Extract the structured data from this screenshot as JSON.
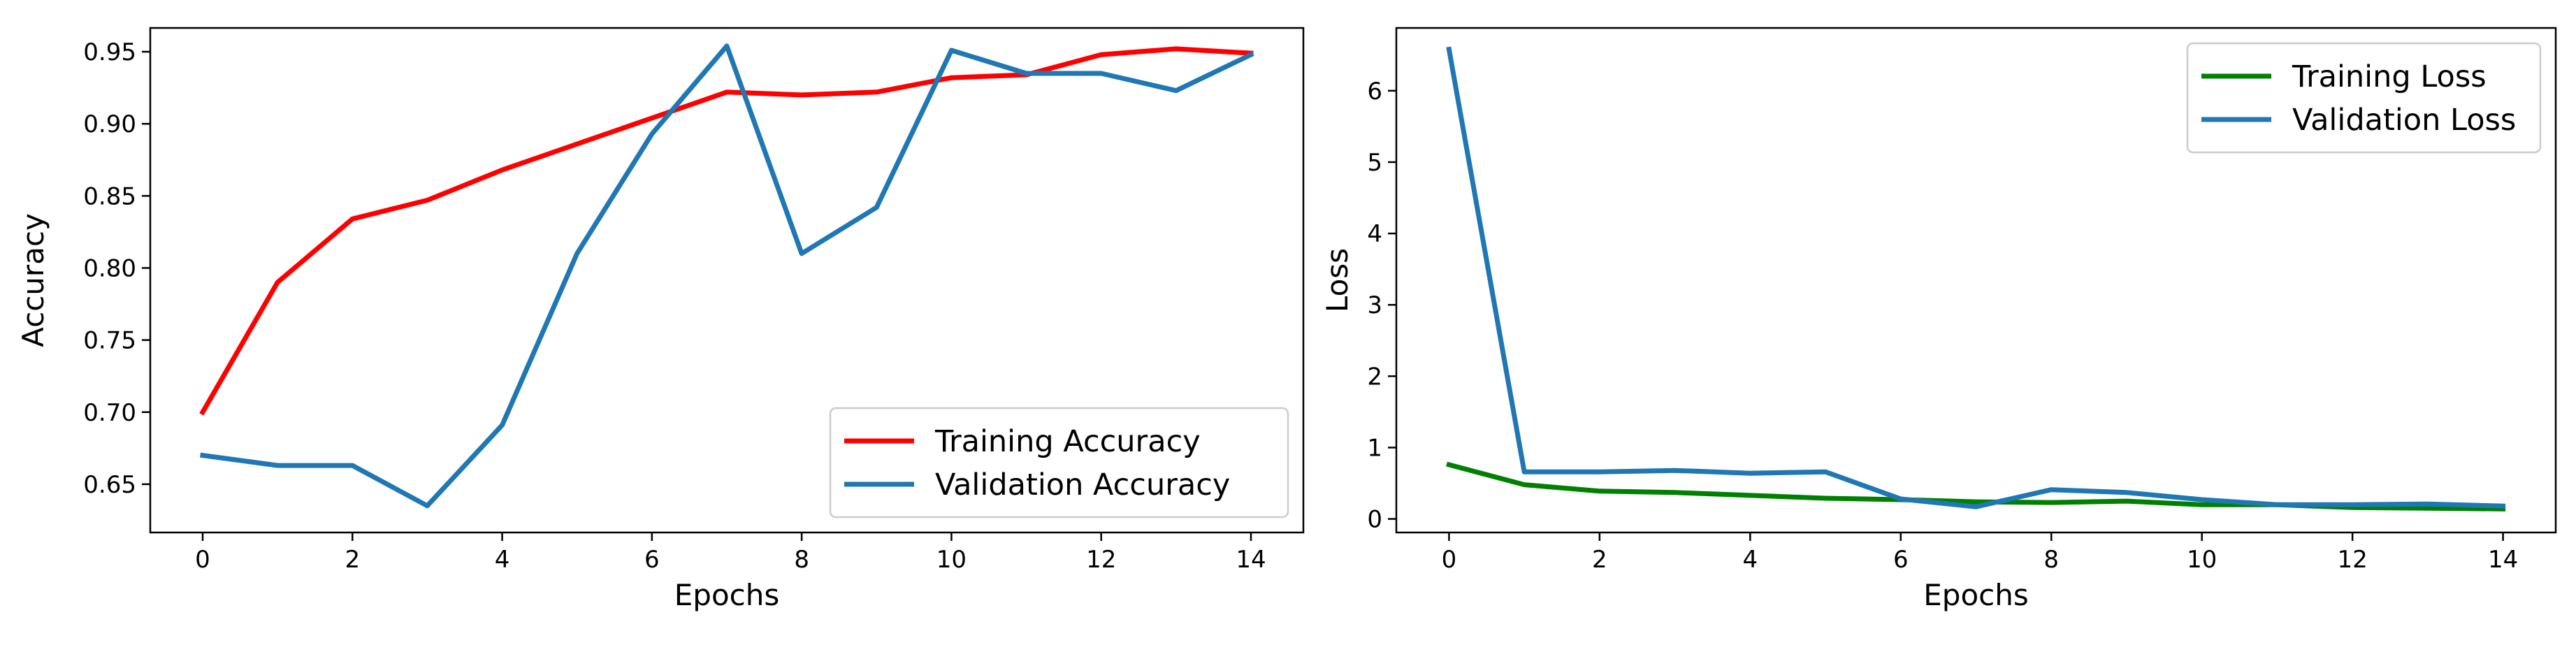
{
  "chart_data": [
    {
      "type": "line",
      "title": "",
      "xlabel": "Epochs",
      "ylabel": "Accuracy",
      "xlim": [
        -0.7,
        14.7
      ],
      "ylim": [
        0.6165,
        0.9665
      ],
      "xticks": [
        0,
        2,
        4,
        6,
        8,
        10,
        12,
        14
      ],
      "xtick_labels": [
        "0",
        "2",
        "4",
        "6",
        "8",
        "10",
        "12",
        "14"
      ],
      "yticks": [
        0.65,
        0.7,
        0.75,
        0.8,
        0.85,
        0.9,
        0.95
      ],
      "ytick_labels": [
        "0.65",
        "0.70",
        "0.75",
        "0.80",
        "0.85",
        "0.90",
        "0.95"
      ],
      "legend_position": "lower-right",
      "x": [
        0,
        1,
        2,
        3,
        4,
        5,
        6,
        7,
        8,
        9,
        10,
        11,
        12,
        13,
        14
      ],
      "series": [
        {
          "name": "Training Accuracy",
          "color": "#ff0000",
          "values": [
            0.7,
            0.79,
            0.834,
            0.847,
            0.868,
            0.886,
            0.904,
            0.922,
            0.92,
            0.922,
            0.932,
            0.934,
            0.948,
            0.952,
            0.949
          ]
        },
        {
          "name": "Validation Accuracy",
          "color": "#1f77b4",
          "values": [
            0.67,
            0.663,
            0.663,
            0.635,
            0.691,
            0.81,
            0.893,
            0.954,
            0.81,
            0.842,
            0.951,
            0.935,
            0.935,
            0.923,
            0.948
          ]
        }
      ]
    },
    {
      "type": "line",
      "title": "",
      "xlabel": "Epochs",
      "ylabel": "Loss",
      "xlim": [
        -0.7,
        14.7
      ],
      "ylim": [
        -0.19,
        6.88
      ],
      "xticks": [
        0,
        2,
        4,
        6,
        8,
        10,
        12,
        14
      ],
      "xtick_labels": [
        "0",
        "2",
        "4",
        "6",
        "8",
        "10",
        "12",
        "14"
      ],
      "yticks": [
        0,
        1,
        2,
        3,
        4,
        5,
        6
      ],
      "ytick_labels": [
        "0",
        "1",
        "2",
        "3",
        "4",
        "5",
        "6"
      ],
      "legend_position": "upper-right",
      "x": [
        0,
        1,
        2,
        3,
        4,
        5,
        6,
        7,
        8,
        9,
        10,
        11,
        12,
        13,
        14
      ],
      "series": [
        {
          "name": "Training Loss",
          "color": "#008000",
          "values": [
            0.76,
            0.48,
            0.39,
            0.37,
            0.33,
            0.29,
            0.27,
            0.24,
            0.23,
            0.25,
            0.2,
            0.2,
            0.16,
            0.15,
            0.14
          ]
        },
        {
          "name": "Validation Loss",
          "color": "#1f77b4",
          "values": [
            6.58,
            0.66,
            0.66,
            0.68,
            0.64,
            0.66,
            0.28,
            0.17,
            0.41,
            0.37,
            0.27,
            0.2,
            0.2,
            0.21,
            0.18
          ]
        }
      ]
    }
  ]
}
